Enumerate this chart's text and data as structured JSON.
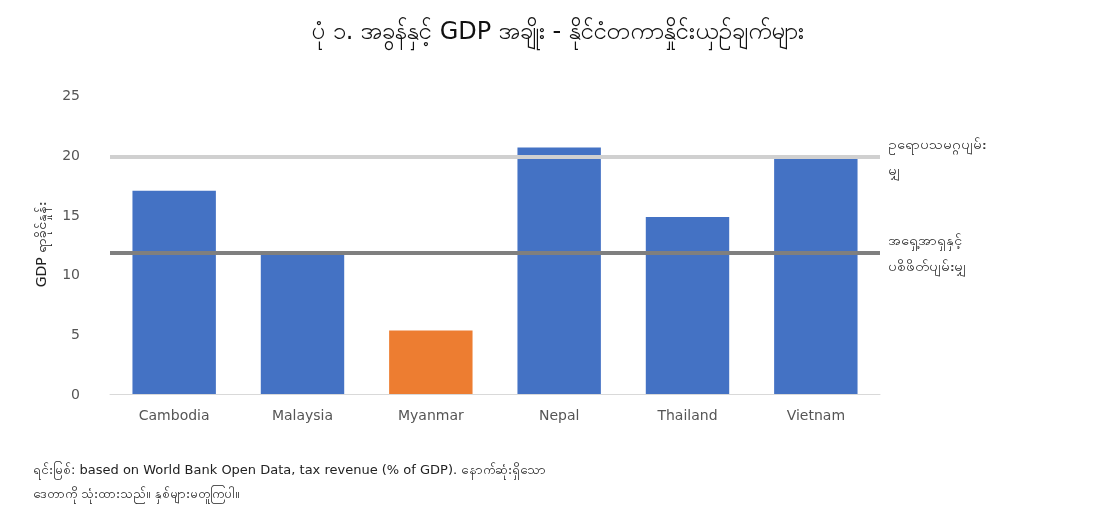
{
  "chart_data": {
    "type": "bar",
    "title": "ပုံ ၁. အခွန်နှင့် GDP အချိုး - နိုင်ငံတကာနှိုင်းယှဉ်ချက်များ",
    "ylabel": "GDP ရာခိုင်နှုန်း",
    "categories": [
      "Cambodia",
      "Malaysia",
      "Myanmar",
      "Nepal",
      "Thailand",
      "Vietnam"
    ],
    "values": [
      17.0,
      11.9,
      5.3,
      20.6,
      14.8,
      19.7
    ],
    "colors": [
      "#4472c4",
      "#4472c4",
      "#ed7d31",
      "#4472c4",
      "#4472c4",
      "#4472c4"
    ],
    "ylim": [
      0,
      25
    ],
    "yticks": [
      0,
      5,
      10,
      15,
      20,
      25
    ],
    "grid": false,
    "ref_lines": [
      {
        "axis": "y",
        "value": 19.8,
        "label": "ဥရောပသမဂ္ဂပျမ်းမျှ",
        "color": "#d0d0d0"
      },
      {
        "axis": "y",
        "value": 11.8,
        "label": "အရှေ့အာရှနှင့် ပစိဖိတ်ပျမ်းမျှ",
        "color": "#7f7f7f"
      }
    ],
    "annotations": [
      "ရင်းမြစ်: based on World Bank Open Data, tax revenue (% of GDP). နောက်ဆုံးရှိသော ဒေတာကို သုံးထားသည်။ နှစ်များမတူကြပါ။"
    ]
  }
}
